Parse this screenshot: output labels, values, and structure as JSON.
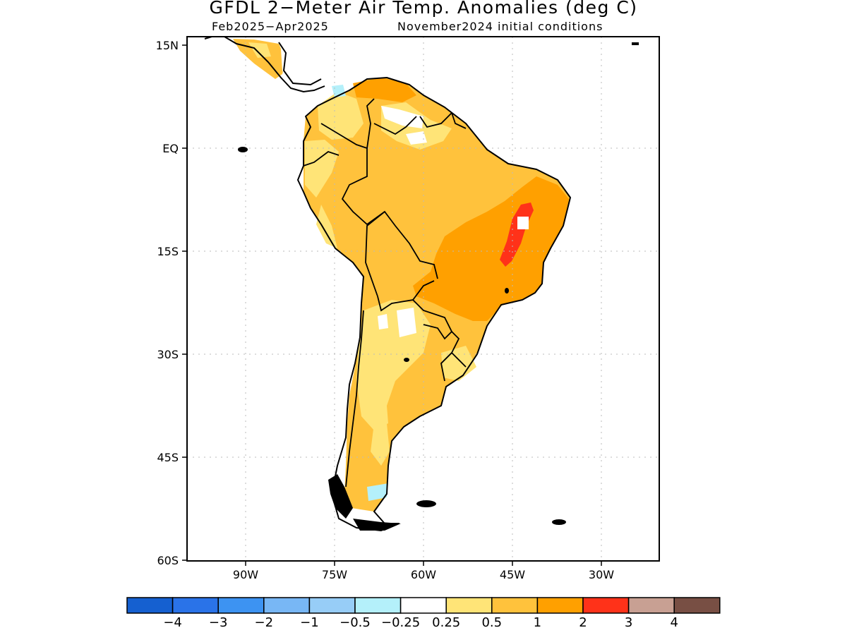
{
  "header": {
    "title": "GFDL 2−Meter Air Temp. Anomalies (deg C)",
    "period": "Feb2025−Apr2025",
    "init": "November2024 initial conditions"
  },
  "axes": {
    "lat_labels": [
      "15N",
      "EQ",
      "15S",
      "30S",
      "45S",
      "60S"
    ],
    "lon_labels": [
      "90W",
      "75W",
      "60W",
      "45W",
      "30W"
    ]
  },
  "colorbar": {
    "colors": [
      "#1560d0",
      "#2a73e8",
      "#3d93f2",
      "#78b7f5",
      "#97cdf7",
      "#b4f0fa",
      "#ffffff",
      "#ffe477",
      "#ffc23c",
      "#ffa000",
      "#ff3219",
      "#c8a093",
      "#784f44"
    ],
    "labels": [
      "−4",
      "−3",
      "−2",
      "−1",
      "−0.5",
      "−0.25",
      "0.25",
      "0.5",
      "1",
      "2",
      "3",
      "4"
    ]
  },
  "map_data": {
    "variable": "2-meter air temperature anomaly",
    "units": "deg C",
    "region": "South America",
    "grid_lines": "dotted",
    "dominant_category": "0.5 to 1",
    "max_category": "2 to 3",
    "max_region": "east-central Brazil"
  }
}
